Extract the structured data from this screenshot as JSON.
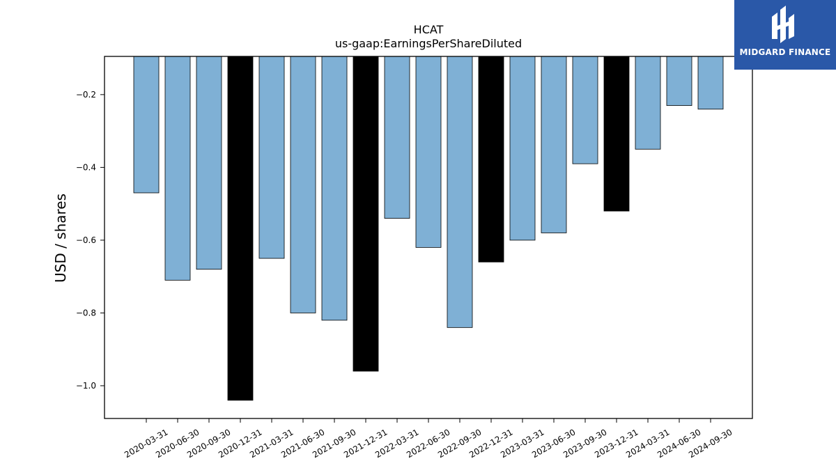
{
  "title": "HCAT",
  "subtitle": "us-gaap:EarningsPerShareDiluted",
  "logo": {
    "text": "MIDGARD FINANCE",
    "background": "#2a58a8"
  },
  "chart_data": {
    "type": "bar",
    "categories": [
      "2020-03-31",
      "2020-06-30",
      "2020-09-30",
      "2020-12-31",
      "2021-03-31",
      "2021-06-30",
      "2021-09-30",
      "2021-12-31",
      "2022-03-31",
      "2022-06-30",
      "2022-09-30",
      "2022-12-31",
      "2023-03-31",
      "2023-06-30",
      "2023-09-30",
      "2023-12-31",
      "2024-03-31",
      "2024-06-30",
      "2024-09-30"
    ],
    "values": [
      -0.47,
      -0.71,
      -0.68,
      -1.04,
      -0.65,
      -0.8,
      -0.82,
      -0.96,
      -0.54,
      -0.62,
      -0.84,
      -0.66,
      -0.6,
      -0.58,
      -0.39,
      -0.52,
      -0.35,
      -0.23,
      -0.24
    ],
    "highlight": [
      false,
      false,
      false,
      true,
      false,
      false,
      false,
      true,
      false,
      false,
      false,
      true,
      false,
      false,
      false,
      true,
      false,
      false,
      false
    ],
    "bar_color": "#7fb0d5",
    "highlight_color": "#000000",
    "title": "HCAT",
    "subtitle": "us-gaap:EarningsPerShareDiluted",
    "xlabel": "",
    "ylabel": "USD / shares",
    "ylim": [
      -1.09,
      -0.095
    ],
    "yticks": [
      -0.2,
      -0.4,
      -0.6,
      -0.8,
      -1.0
    ],
    "ytick_labels": [
      "−0.2",
      "−0.4",
      "−0.6",
      "−0.8",
      "−1.0"
    ],
    "grid": false,
    "legend": "none"
  }
}
